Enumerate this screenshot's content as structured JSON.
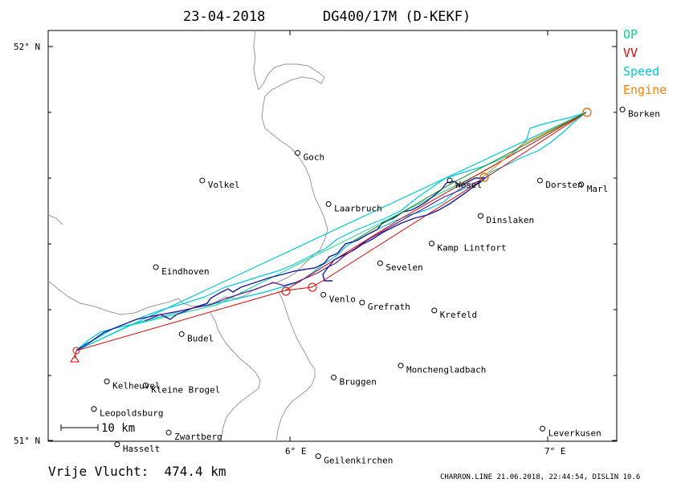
{
  "header": {
    "date": "23-04-2018",
    "glider": "DG400/17M (D-KEKF)"
  },
  "legend": [
    {
      "label": "OP",
      "color": "#00d88c"
    },
    {
      "label": "VV",
      "color": "#e00000"
    },
    {
      "label": "Speed",
      "color": "#00c8e0"
    },
    {
      "label": "Engine",
      "color": "#ff8000"
    }
  ],
  "axes": {
    "lat_labels": [
      "52° N",
      "51° N"
    ],
    "lon_labels": [
      "6° E",
      "7° E"
    ]
  },
  "places": [
    {
      "name": "Goch",
      "lon": 6.03,
      "lat": 51.73
    },
    {
      "name": "Volkel",
      "lon": 5.66,
      "lat": 51.66
    },
    {
      "name": "Wesel",
      "lon": 6.62,
      "lat": 51.66
    },
    {
      "name": "Dorsten",
      "lon": 6.97,
      "lat": 51.66
    },
    {
      "name": "Marl",
      "lon": 7.13,
      "lat": 51.65
    },
    {
      "name": "Borken",
      "lon": 7.29,
      "lat": 51.84
    },
    {
      "name": "Laarbruch",
      "lon": 6.15,
      "lat": 51.6
    },
    {
      "name": "Dinslaken",
      "lon": 6.74,
      "lat": 51.57
    },
    {
      "name": "Kamp Lintfort",
      "lon": 6.55,
      "lat": 51.5
    },
    {
      "name": "Sevelen",
      "lon": 6.35,
      "lat": 51.45
    },
    {
      "name": "Eindhoven",
      "lon": 5.48,
      "lat": 51.44
    },
    {
      "name": "Krefeld",
      "lon": 6.56,
      "lat": 51.33
    },
    {
      "name": "Venlo",
      "lon": 6.13,
      "lat": 51.37
    },
    {
      "name": "Grefrath",
      "lon": 6.28,
      "lat": 51.35
    },
    {
      "name": "Budel",
      "lon": 5.58,
      "lat": 51.27
    },
    {
      "name": "Monchengladbach",
      "lon": 6.43,
      "lat": 51.19
    },
    {
      "name": "Bruggen",
      "lon": 6.17,
      "lat": 51.16
    },
    {
      "name": "Kelheuvel",
      "lon": 5.29,
      "lat": 51.15
    },
    {
      "name": "Kleine Brogel",
      "lon": 5.44,
      "lat": 51.14
    },
    {
      "name": "Leopoldsburg",
      "lon": 5.24,
      "lat": 51.08
    },
    {
      "name": "Zwartberg",
      "lon": 5.53,
      "lat": 51.02
    },
    {
      "name": "Hasselt",
      "lon": 5.33,
      "lat": 50.99
    },
    {
      "name": "Leverkusen",
      "lon": 6.98,
      "lat": 51.03
    },
    {
      "name": "Geilenkirchen",
      "lon": 6.11,
      "lat": 50.96
    }
  ],
  "scale_bar": "10 km",
  "footer": {
    "distance": "Vrije Vlucht:  474.4 km",
    "stamp": "CHARRON.LINE 21.06.2018, 22:44:54, DISLIN 10.6"
  }
}
